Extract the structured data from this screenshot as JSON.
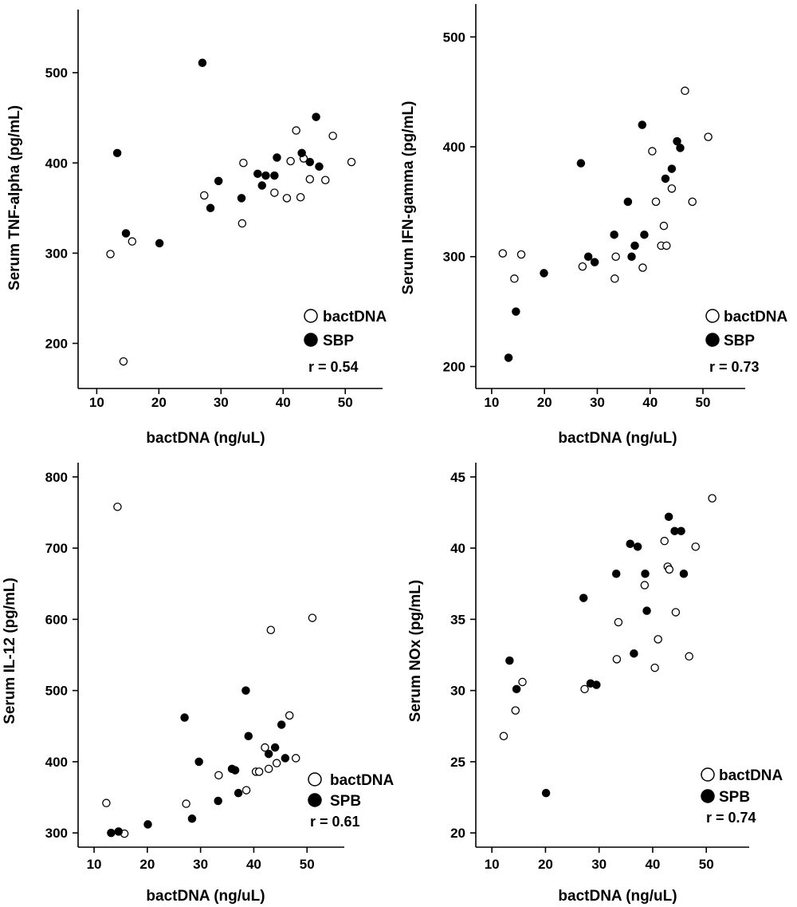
{
  "chart_data": [
    {
      "type": "scatter",
      "xlabel": "bactDNA (ng/uL)",
      "ylabel": "Serum TNF-alpha (pg/mL)",
      "xlim": [
        7,
        56
      ],
      "ylim": [
        150,
        570
      ],
      "xticks": [
        10,
        20,
        30,
        40,
        50
      ],
      "yticks": [
        200,
        300,
        400,
        500
      ],
      "grid": false,
      "legend_position": "bottom-right",
      "annotation": "r = 0.54",
      "series": [
        {
          "name": "bactDNA",
          "marker": "open-circle",
          "points": [
            [
              12.2,
              299
            ],
            [
              14.3,
              180
            ],
            [
              15.7,
              313
            ],
            [
              27.3,
              364
            ],
            [
              33.4,
              333
            ],
            [
              33.6,
              400
            ],
            [
              38.6,
              367
            ],
            [
              40.6,
              361
            ],
            [
              41.2,
              402
            ],
            [
              42.1,
              436
            ],
            [
              42.8,
              362
            ],
            [
              43.3,
              405
            ],
            [
              44.3,
              382
            ],
            [
              46.8,
              381
            ],
            [
              48.0,
              430
            ],
            [
              51.0,
              401
            ]
          ]
        },
        {
          "name": "SBP",
          "marker": "filled-circle",
          "points": [
            [
              13.3,
              411
            ],
            [
              14.7,
              322
            ],
            [
              20.1,
              311
            ],
            [
              27.0,
              511
            ],
            [
              28.3,
              350
            ],
            [
              29.6,
              380
            ],
            [
              33.3,
              361
            ],
            [
              35.9,
              388
            ],
            [
              36.6,
              375
            ],
            [
              37.2,
              386
            ],
            [
              38.6,
              386
            ],
            [
              39.0,
              406
            ],
            [
              43.0,
              411
            ],
            [
              44.3,
              401
            ],
            [
              45.3,
              451
            ],
            [
              45.8,
              396
            ]
          ]
        }
      ]
    },
    {
      "type": "scatter",
      "xlabel": "bactDNA (ng/uL)",
      "ylabel": "Serum IFN-gamma (pg/mL)",
      "xlim": [
        7,
        58
      ],
      "ylim": [
        180,
        530
      ],
      "xticks": [
        10,
        20,
        30,
        40,
        50
      ],
      "yticks": [
        200,
        300,
        400,
        500
      ],
      "grid": false,
      "legend_position": "bottom-right",
      "annotation": "r = 0.73",
      "series": [
        {
          "name": "bactDNA",
          "marker": "open-circle",
          "points": [
            [
              12.1,
              303
            ],
            [
              14.3,
              280
            ],
            [
              15.6,
              302
            ],
            [
              27.2,
              291
            ],
            [
              33.3,
              280
            ],
            [
              33.5,
              300
            ],
            [
              38.6,
              290
            ],
            [
              40.4,
              396
            ],
            [
              41.1,
              350
            ],
            [
              42.1,
              310
            ],
            [
              42.6,
              328
            ],
            [
              43.1,
              310
            ],
            [
              44.1,
              362
            ],
            [
              46.6,
              451
            ],
            [
              48.0,
              350
            ],
            [
              51.0,
              409
            ]
          ]
        },
        {
          "name": "SBP",
          "marker": "filled-circle",
          "points": [
            [
              13.2,
              208
            ],
            [
              14.6,
              250
            ],
            [
              19.9,
              285
            ],
            [
              26.9,
              385
            ],
            [
              28.3,
              300
            ],
            [
              29.5,
              295
            ],
            [
              33.2,
              320
            ],
            [
              35.8,
              350
            ],
            [
              36.5,
              300
            ],
            [
              37.1,
              310
            ],
            [
              38.5,
              420
            ],
            [
              38.9,
              320
            ],
            [
              42.9,
              371
            ],
            [
              44.1,
              380
            ],
            [
              45.1,
              405
            ],
            [
              45.7,
              399
            ]
          ]
        }
      ]
    },
    {
      "type": "scatter",
      "xlabel": "bactDNA (ng/uL)",
      "ylabel": "Serum IL-12 (pg/mL)",
      "xlim": [
        7,
        57
      ],
      "ylim": [
        280,
        820
      ],
      "xticks": [
        10,
        20,
        30,
        40,
        50
      ],
      "yticks": [
        300,
        400,
        500,
        600,
        700,
        800
      ],
      "grid": false,
      "legend_position": "bottom-right",
      "annotation": "r = 0.61",
      "series": [
        {
          "name": "bactDNA",
          "marker": "open-circle",
          "points": [
            [
              12.3,
              342
            ],
            [
              14.4,
              758
            ],
            [
              15.7,
              299
            ],
            [
              27.3,
              341
            ],
            [
              33.4,
              381
            ],
            [
              38.6,
              360
            ],
            [
              40.4,
              386
            ],
            [
              41.0,
              386
            ],
            [
              42.1,
              420
            ],
            [
              42.8,
              390
            ],
            [
              43.2,
              585
            ],
            [
              44.3,
              398
            ],
            [
              46.7,
              465
            ],
            [
              47.9,
              405
            ],
            [
              51.0,
              602
            ]
          ]
        },
        {
          "name": "SPB",
          "marker": "filled-circle",
          "points": [
            [
              13.2,
              300
            ],
            [
              14.6,
              302
            ],
            [
              20.1,
              312
            ],
            [
              27.0,
              462
            ],
            [
              28.4,
              320
            ],
            [
              29.7,
              400
            ],
            [
              33.3,
              345
            ],
            [
              35.9,
              390
            ],
            [
              36.5,
              388
            ],
            [
              37.1,
              356
            ],
            [
              38.5,
              500
            ],
            [
              39.0,
              436
            ],
            [
              42.8,
              411
            ],
            [
              44.0,
              420
            ],
            [
              45.2,
              452
            ],
            [
              45.9,
              405
            ]
          ]
        }
      ]
    },
    {
      "type": "scatter",
      "xlabel": "bactDNA (ng/uL)",
      "ylabel": "Serum NOx (pg/mL)",
      "xlim": [
        7,
        58
      ],
      "ylim": [
        19,
        46
      ],
      "xticks": [
        10,
        20,
        30,
        40,
        50
      ],
      "yticks": [
        20,
        25,
        30,
        35,
        40,
        45
      ],
      "grid": false,
      "legend_position": "bottom-right",
      "annotation": "r = 0.74",
      "series": [
        {
          "name": "bactDNA",
          "marker": "open-circle",
          "points": [
            [
              12.2,
              26.8
            ],
            [
              14.4,
              28.6
            ],
            [
              15.7,
              30.6
            ],
            [
              27.3,
              30.1
            ],
            [
              33.3,
              32.2
            ],
            [
              33.6,
              34.8
            ],
            [
              38.5,
              37.4
            ],
            [
              40.4,
              31.6
            ],
            [
              41.0,
              33.6
            ],
            [
              42.2,
              40.5
            ],
            [
              42.8,
              38.7
            ],
            [
              43.1,
              38.5
            ],
            [
              44.3,
              35.5
            ],
            [
              46.8,
              32.4
            ],
            [
              48.0,
              40.1
            ],
            [
              51.1,
              43.5
            ]
          ]
        },
        {
          "name": "SPB",
          "marker": "filled-circle",
          "points": [
            [
              13.3,
              32.1
            ],
            [
              14.6,
              30.1
            ],
            [
              20.1,
              22.8
            ],
            [
              27.1,
              36.5
            ],
            [
              28.4,
              30.5
            ],
            [
              29.5,
              30.4
            ],
            [
              33.2,
              38.2
            ],
            [
              35.8,
              40.3
            ],
            [
              36.5,
              32.6
            ],
            [
              37.2,
              40.1
            ],
            [
              38.6,
              38.2
            ],
            [
              38.9,
              35.6
            ],
            [
              43.0,
              42.2
            ],
            [
              44.1,
              41.2
            ],
            [
              45.3,
              41.2
            ],
            [
              45.8,
              38.2
            ]
          ]
        }
      ]
    }
  ]
}
